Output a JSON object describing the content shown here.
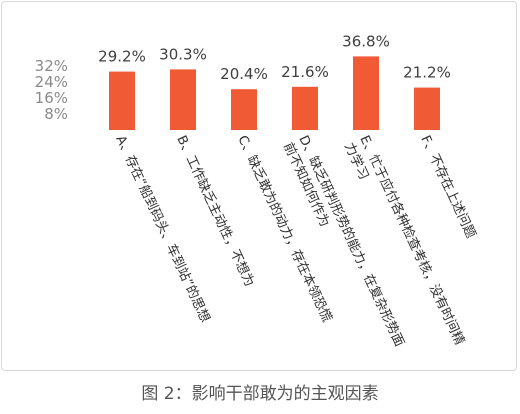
{
  "chart_data": {
    "type": "bar",
    "categories": [
      "A、存在“船到码头、车到站”的思想",
      "B、工作缺乏主动性，不想为",
      "C、缺乏敢为的动力，存在本领恐慌",
      "D、缺乏研判形势的能力，在复杂形势面前不知如何作为",
      "E、忙于应付各种检查考核，没有时间精力学习",
      "F、不存在上述问题"
    ],
    "values": [
      29.2,
      30.3,
      20.4,
      21.6,
      36.8,
      21.2
    ],
    "data_labels": [
      "29.2%",
      "30.3%",
      "20.4%",
      "21.6%",
      "36.8%",
      "21.2%"
    ],
    "yticks": [
      "8%",
      "16%",
      "24%",
      "32%"
    ],
    "ytick_values": [
      8,
      16,
      24,
      32
    ],
    "ylim": [
      0,
      32
    ],
    "bar_color": "#f05a35",
    "grid": false,
    "title": "",
    "xlabel": "",
    "ylabel": ""
  },
  "caption": "图 2：影响干部敢为的主观因素"
}
